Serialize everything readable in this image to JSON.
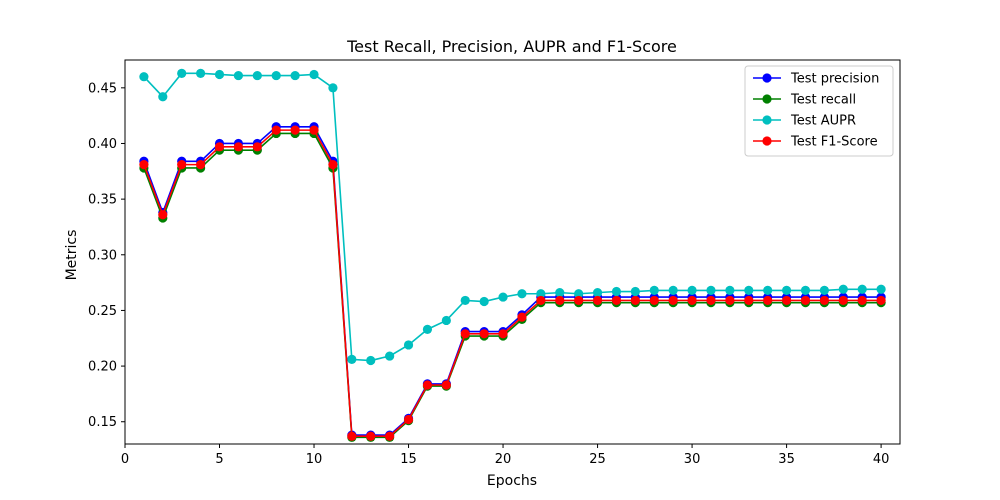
{
  "chart_data": {
    "type": "line",
    "title": "Test Recall, Precision, AUPR and F1-Score",
    "xlabel": "Epochs",
    "ylabel": "Metrics",
    "xlim": [
      0,
      41
    ],
    "ylim": [
      0.13,
      0.475
    ],
    "xticks": [
      0,
      5,
      10,
      15,
      20,
      25,
      30,
      35,
      40
    ],
    "yticks": [
      0.15,
      0.2,
      0.25,
      0.3,
      0.35,
      0.4,
      0.45
    ],
    "grid": false,
    "legend_position": "top-right",
    "x": [
      1,
      2,
      3,
      4,
      5,
      6,
      7,
      8,
      9,
      10,
      11,
      12,
      13,
      14,
      15,
      16,
      17,
      18,
      19,
      20,
      21,
      22,
      23,
      24,
      25,
      26,
      27,
      28,
      29,
      30,
      31,
      32,
      33,
      34,
      35,
      36,
      37,
      38,
      39,
      40
    ],
    "series": [
      {
        "name": "Test precision",
        "color": "#0000ff",
        "values": [
          0.384,
          0.338,
          0.384,
          0.384,
          0.4,
          0.4,
          0.4,
          0.415,
          0.415,
          0.415,
          0.384,
          0.138,
          0.138,
          0.138,
          0.153,
          0.184,
          0.184,
          0.231,
          0.231,
          0.231,
          0.246,
          0.262,
          0.262,
          0.262,
          0.262,
          0.262,
          0.262,
          0.262,
          0.262,
          0.262,
          0.262,
          0.262,
          0.262,
          0.262,
          0.262,
          0.262,
          0.262,
          0.262,
          0.262,
          0.262
        ]
      },
      {
        "name": "Test recall",
        "color": "#008000",
        "values": [
          0.378,
          0.333,
          0.378,
          0.378,
          0.394,
          0.394,
          0.394,
          0.409,
          0.409,
          0.409,
          0.378,
          0.136,
          0.136,
          0.136,
          0.151,
          0.182,
          0.182,
          0.227,
          0.227,
          0.227,
          0.242,
          0.257,
          0.257,
          0.257,
          0.257,
          0.257,
          0.257,
          0.257,
          0.257,
          0.257,
          0.257,
          0.257,
          0.257,
          0.257,
          0.257,
          0.257,
          0.257,
          0.257,
          0.257,
          0.257
        ]
      },
      {
        "name": "Test AUPR",
        "color": "#00bfbf",
        "values": [
          0.46,
          0.442,
          0.463,
          0.463,
          0.462,
          0.461,
          0.461,
          0.461,
          0.461,
          0.462,
          0.45,
          0.206,
          0.205,
          0.209,
          0.219,
          0.233,
          0.241,
          0.259,
          0.258,
          0.262,
          0.265,
          0.265,
          0.266,
          0.265,
          0.266,
          0.267,
          0.267,
          0.268,
          0.268,
          0.268,
          0.268,
          0.268,
          0.268,
          0.268,
          0.268,
          0.268,
          0.268,
          0.269,
          0.269,
          0.269
        ]
      },
      {
        "name": "Test F1-Score",
        "color": "#ff0000",
        "values": [
          0.381,
          0.336,
          0.381,
          0.381,
          0.397,
          0.397,
          0.397,
          0.412,
          0.412,
          0.412,
          0.381,
          0.137,
          0.137,
          0.137,
          0.152,
          0.183,
          0.183,
          0.229,
          0.229,
          0.229,
          0.244,
          0.259,
          0.259,
          0.259,
          0.259,
          0.259,
          0.259,
          0.259,
          0.259,
          0.259,
          0.259,
          0.259,
          0.259,
          0.259,
          0.259,
          0.259,
          0.259,
          0.259,
          0.259,
          0.259
        ]
      }
    ]
  }
}
